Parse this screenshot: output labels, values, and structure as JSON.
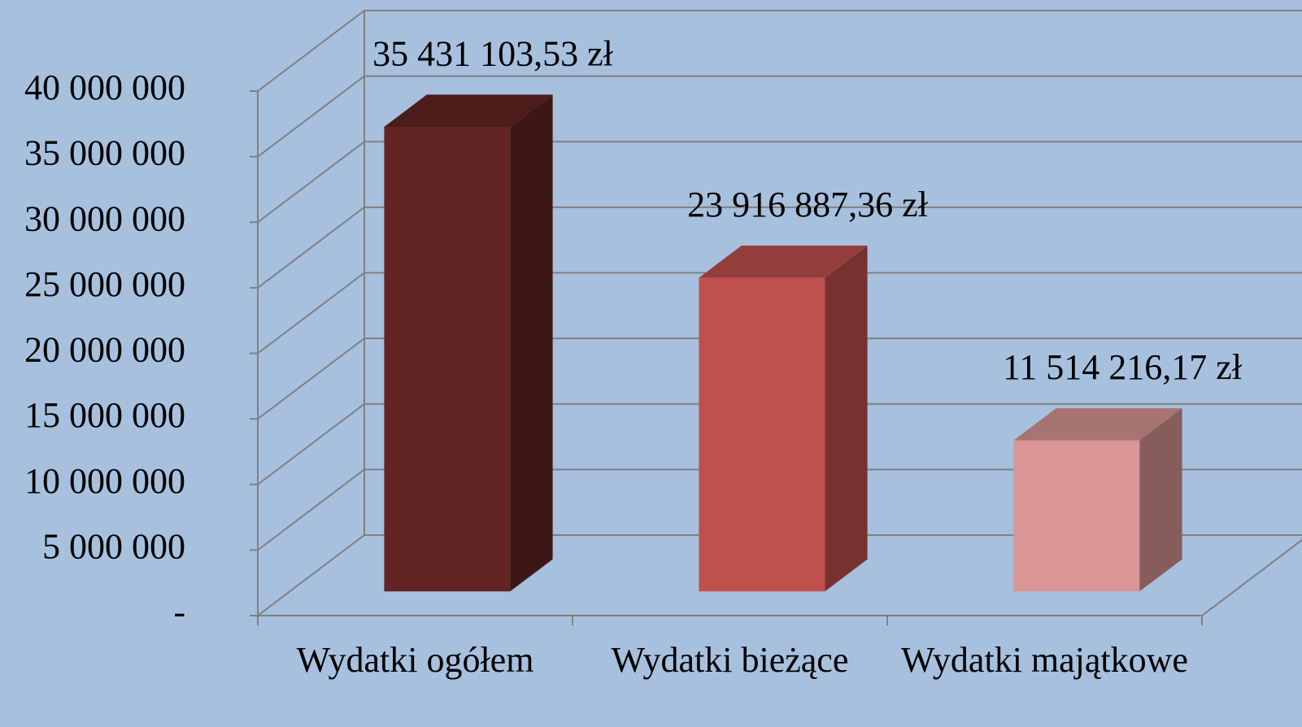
{
  "chart_data": {
    "type": "bar3d",
    "categories": [
      "Wydatki ogółem",
      "Wydatki bieżące",
      "Wydatki majątkowe"
    ],
    "values": [
      35431103.53,
      23916887.36,
      11514216.17
    ],
    "value_labels": [
      "35 431 103,53 zł",
      "23 916 887,36 zł",
      "11 514 216,17 zł"
    ],
    "colors": [
      "#632523",
      "#c0504d",
      "#d99694"
    ],
    "ylim": [
      0,
      40000000
    ],
    "yticks": [
      {
        "value": 0,
        "label": "-"
      },
      {
        "value": 5000000,
        "label": "5 000 000"
      },
      {
        "value": 10000000,
        "label": "10 000 000"
      },
      {
        "value": 15000000,
        "label": "15 000 000"
      },
      {
        "value": 20000000,
        "label": "20 000 000"
      },
      {
        "value": 25000000,
        "label": "25 000 000"
      },
      {
        "value": 30000000,
        "label": "30 000 000"
      },
      {
        "value": 35000000,
        "label": "35 000 000"
      },
      {
        "value": 40000000,
        "label": "40 000 000"
      }
    ],
    "grid": true
  }
}
